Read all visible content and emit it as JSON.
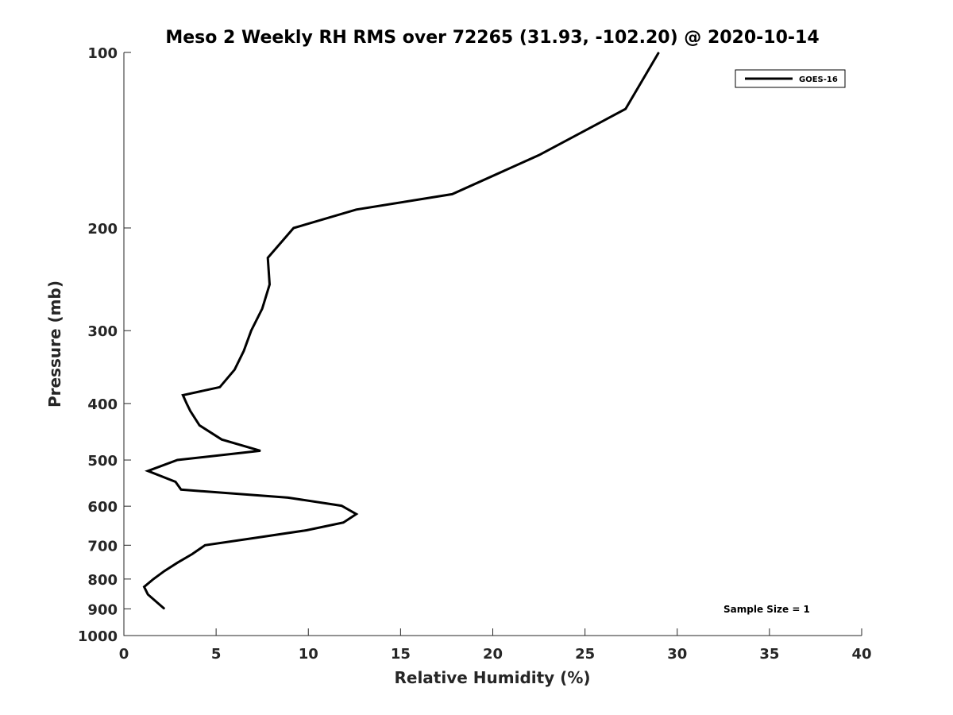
{
  "chart_data": {
    "type": "line",
    "title": "Meso 2 Weekly RH RMS over 72265 (31.93, -102.20) @ 2020-10-14",
    "xlabel": "Relative Humidity (%)",
    "ylabel": "Pressure (mb)",
    "xlim": [
      0,
      40
    ],
    "ylim": [
      100,
      1000
    ],
    "y_scale": "log",
    "y_reversed": true,
    "grid": false,
    "legend_position": "top-right",
    "x_ticks": [
      0,
      5,
      10,
      15,
      20,
      25,
      30,
      35,
      40
    ],
    "x_tick_labels": [
      "0",
      "5",
      "10",
      "15",
      "20",
      "25",
      "30",
      "35",
      "40"
    ],
    "y_ticks": [
      100,
      200,
      300,
      400,
      500,
      600,
      700,
      800,
      900,
      1000
    ],
    "y_tick_labels": [
      "100",
      "200",
      "300",
      "400",
      "500",
      "600",
      "700",
      "800",
      "900",
      "1000"
    ],
    "series": [
      {
        "name": "GOES-16",
        "color": "#000000",
        "x": [
          29.0,
          27.2,
          22.5,
          17.8,
          12.6,
          9.2,
          7.8,
          7.9,
          7.5,
          6.9,
          6.5,
          6.0,
          5.2,
          3.2,
          3.4,
          3.6,
          4.1,
          5.3,
          7.4,
          2.9,
          1.3,
          2.8,
          3.1,
          8.9,
          11.8,
          12.6,
          11.9,
          9.9,
          7.1,
          4.4,
          3.7,
          2.9,
          2.2,
          1.6,
          1.1,
          1.3,
          2.2
        ],
        "y": [
          100,
          125,
          150,
          175,
          186,
          200,
          225,
          250,
          275,
          300,
          325,
          350,
          375,
          387,
          400,
          412,
          436,
          461,
          482,
          500,
          522,
          545,
          562,
          580,
          599,
          619,
          640,
          660,
          680,
          700,
          725,
          750,
          775,
          800,
          825,
          850,
          900
        ]
      }
    ],
    "annotations": [
      "Sample Size = 1"
    ]
  }
}
